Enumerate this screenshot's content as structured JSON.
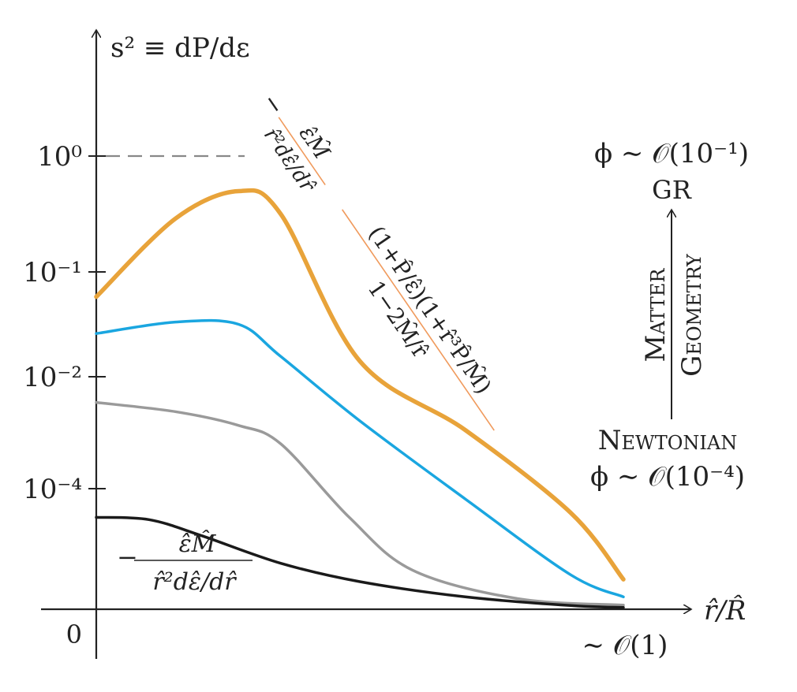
{
  "chart_data": {
    "type": "line",
    "y_axis_label": "s² ≡ dP/dε",
    "x_axis_label": "r̂/R̂",
    "y_ticks": [
      "10⁰",
      "10⁻¹",
      "10⁻²",
      "10⁻⁴"
    ],
    "x_origin_label": "0",
    "x_end_label": "∼ 𝒪(1)",
    "series": [
      {
        "color": "#e8a33a",
        "x": [
          0,
          0.15,
          0.27,
          0.35,
          0.5,
          0.7,
          0.9,
          1.0
        ],
        "y": [
          0.68,
          0.85,
          0.91,
          0.86,
          0.54,
          0.39,
          0.21,
          0.065
        ]
      },
      {
        "color": "#1aa6e0",
        "x": [
          0,
          0.15,
          0.27,
          0.35,
          0.5,
          0.7,
          0.9,
          1.0
        ],
        "y": [
          0.6,
          0.625,
          0.62,
          0.55,
          0.41,
          0.24,
          0.075,
          0.027
        ]
      },
      {
        "color": "#9a9a9a",
        "x": [
          0,
          0.15,
          0.27,
          0.35,
          0.48,
          0.6,
          0.8,
          1.0
        ],
        "y": [
          0.45,
          0.43,
          0.4,
          0.36,
          0.2,
          0.085,
          0.023,
          0.009
        ]
      },
      {
        "color": "#1a1a1a",
        "x": [
          0,
          0.1,
          0.2,
          0.35,
          0.5,
          0.7,
          0.9,
          1.0
        ],
        "y": [
          0.2,
          0.195,
          0.16,
          0.1,
          0.06,
          0.027,
          0.008,
          0.004
        ]
      }
    ],
    "annotations": {
      "gr_formula_prefix": "−",
      "gr_numerator": "ε̂M̂",
      "gr_denominator": "r̂²dε̂/dr̂",
      "gr_correction_numerator": "(1+P̂/ε̂)(1+r̂³P̂/M̂)",
      "gr_correction_denominator": "1−2M̂/r̂",
      "newt_formula_prefix": "−",
      "newt_numerator": "ε̂M̂",
      "newt_denominator": "r̂²dε̂/dr̂",
      "phi_gr": "ϕ ∼ 𝒪(10⁻¹)",
      "gr_label": "GR",
      "matter_label": "Matter",
      "geometry_label": "Geometry",
      "newtonian_label": "Newtonian",
      "phi_newt": "ϕ ∼ 𝒪(10⁻⁴)"
    }
  }
}
